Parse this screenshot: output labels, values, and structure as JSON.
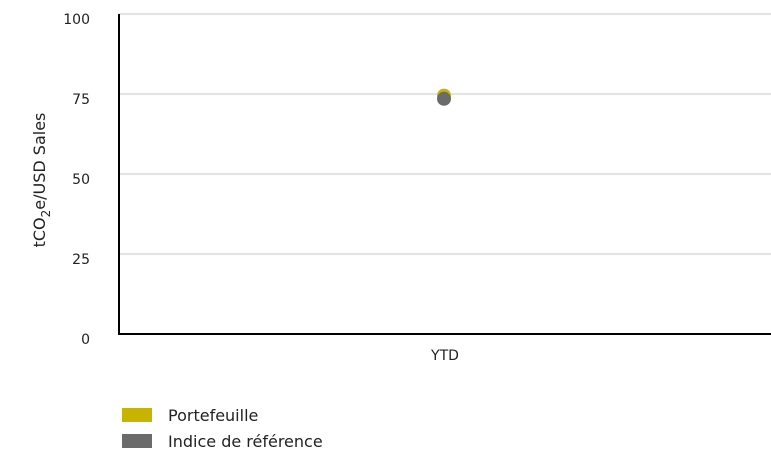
{
  "chart_data": {
    "type": "scatter",
    "categories": [
      "YTD"
    ],
    "ylabel": "tCO2e/USD Sales",
    "ylabel_parts": {
      "before": "tCO",
      "sub": "2",
      "after": "e/USD Sales"
    },
    "ylim": [
      0,
      100
    ],
    "yticks": [
      0,
      25,
      50,
      75,
      100
    ],
    "grid": true,
    "legend_placement": "bottom-left",
    "series": [
      {
        "name": "Portefeuille",
        "color": "#c8b400",
        "values": [
          74.5
        ]
      },
      {
        "name": "Indice de référence",
        "color": "#6b6b6b",
        "values": [
          73.5
        ]
      }
    ]
  }
}
